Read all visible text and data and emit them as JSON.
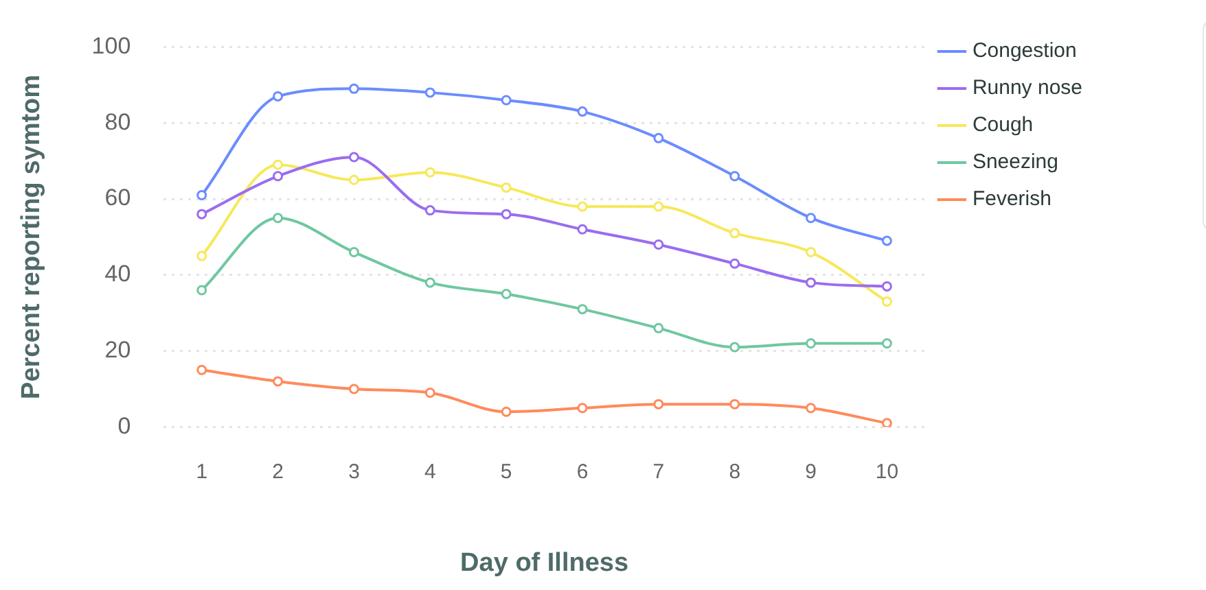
{
  "chart_data": {
    "type": "line",
    "xlabel": "Day of Illness",
    "ylabel": "Percent reporting symtom",
    "categories": [
      "1",
      "2",
      "3",
      "4",
      "5",
      "6",
      "7",
      "8",
      "9",
      "10"
    ],
    "ylim": [
      0,
      100
    ],
    "yticks": [
      0,
      20,
      40,
      60,
      80,
      100
    ],
    "grid": "y",
    "legend": "top right",
    "marker": "circle",
    "line_style": "solid",
    "series": [
      {
        "name": "Congestion",
        "color": "#6b8cff",
        "values": [
          61,
          87,
          89,
          88,
          86,
          83,
          76,
          66,
          55,
          49
        ]
      },
      {
        "name": "Runny nose",
        "color": "#9a6cf0",
        "values": [
          56,
          66,
          71,
          57,
          56,
          52,
          48,
          43,
          38,
          37
        ]
      },
      {
        "name": "Cough",
        "color": "#f7e85a",
        "values": [
          45,
          69,
          65,
          67,
          63,
          58,
          58,
          51,
          46,
          33
        ]
      },
      {
        "name": "Sneezing",
        "color": "#6fc7a0",
        "values": [
          36,
          55,
          46,
          38,
          35,
          31,
          26,
          21,
          22,
          22
        ]
      },
      {
        "name": "Feverish",
        "color": "#ff8a5c",
        "values": [
          15,
          12,
          10,
          9,
          4,
          5,
          6,
          6,
          5,
          1
        ]
      }
    ]
  }
}
